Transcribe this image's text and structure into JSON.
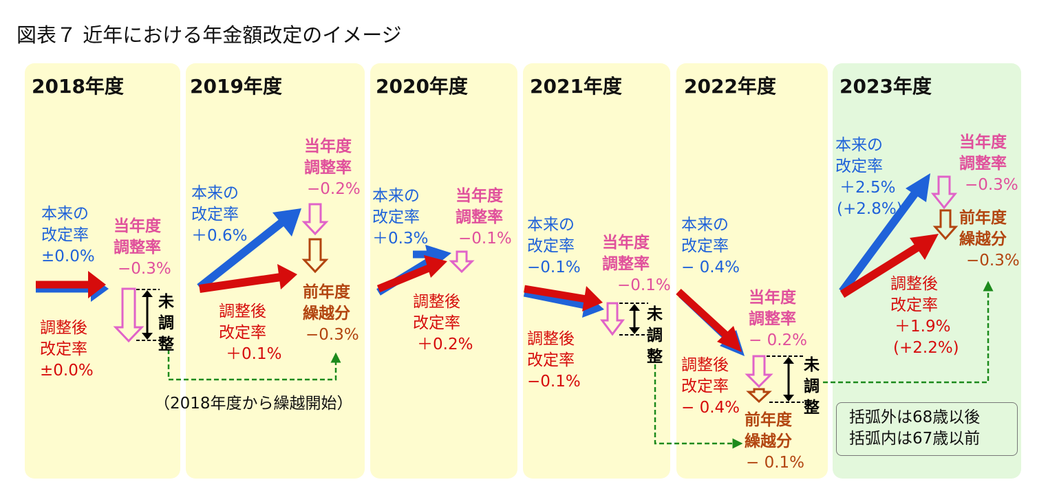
{
  "title": "図表７ 近年における年金額改定のイメージ",
  "colors": {
    "panel": "#fefccf",
    "panel_green": "#e3f8dc",
    "original_rate": "#1f62d9",
    "adjusted_rate": "#d60c0c",
    "current_adjustment": "#e0509c",
    "carryover": "#b24510",
    "carry_line": "#1c8a1c"
  },
  "years": [
    {
      "label": "2018年度",
      "original": [
        "本来の",
        "改定率",
        "±0.0%"
      ],
      "current_adj": [
        "当年度",
        "調整率",
        "−0.3%"
      ],
      "adjusted": [
        "調整後",
        "改定率",
        "±0.0%"
      ],
      "unadjusted": [
        "未",
        "調",
        "整"
      ]
    },
    {
      "label": "2019年度",
      "original": [
        "本来の",
        "改定率",
        "＋0.6%"
      ],
      "current_adj": [
        "当年度",
        "調整率",
        "−0.2%"
      ],
      "carryover": [
        "前年度",
        "繰越分",
        "−0.3%"
      ],
      "adjusted": [
        "調整後",
        "改定率",
        "＋0.1%"
      ]
    },
    {
      "label": "2020年度",
      "original": [
        "本来の",
        "改定率",
        "＋0.3%"
      ],
      "current_adj": [
        "当年度",
        "調整率",
        "−0.1%"
      ],
      "adjusted": [
        "調整後",
        "改定率",
        "＋0.2%"
      ]
    },
    {
      "label": "2021年度",
      "original": [
        "本来の",
        "改定率",
        "−0.1%"
      ],
      "current_adj": [
        "当年度",
        "調整率",
        "−0.1%"
      ],
      "adjusted": [
        "調整後",
        "改定率",
        "−0.1%"
      ],
      "unadjusted": [
        "未",
        "調",
        "整"
      ]
    },
    {
      "label": "2022年度",
      "original": [
        "本来の",
        "改定率",
        "− 0.4%"
      ],
      "current_adj": [
        "当年度",
        "調整率",
        "− 0.2%"
      ],
      "adjusted": [
        "調整後",
        "改定率",
        "− 0.4%"
      ],
      "carryover": [
        "前年度",
        "繰越分",
        "− 0.1%"
      ],
      "unadjusted": [
        "未",
        "調",
        "整"
      ]
    },
    {
      "label": "2023年度",
      "original": [
        "本来の",
        "改定率",
        "＋2.5%",
        "(+2.8%)"
      ],
      "current_adj": [
        "当年度",
        "調整率",
        "−0.3%"
      ],
      "carryover": [
        "前年度",
        "繰越分",
        "−0.3%"
      ],
      "adjusted": [
        "調整後",
        "改定率",
        "＋1.9%",
        "(+2.2%)"
      ]
    }
  ],
  "carry_note": "（2018年度から繰越開始）",
  "bracket_note": [
    "括弧外は68歳以後",
    "括弧内は67歳以前"
  ]
}
